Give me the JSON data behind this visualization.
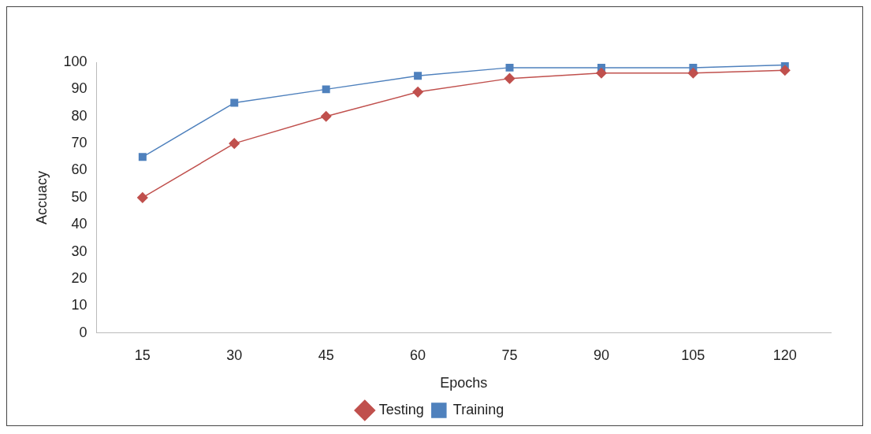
{
  "chart_data": {
    "type": "line",
    "xlabel": "Epochs",
    "ylabel": "Accuacy",
    "categories": [
      "15",
      "30",
      "45",
      "60",
      "75",
      "90",
      "105",
      "120"
    ],
    "series": [
      {
        "name": "Testing",
        "color": "#c0504d",
        "marker": "diamond",
        "values": [
          50,
          70,
          80,
          89,
          94,
          96,
          96,
          97
        ]
      },
      {
        "name": "Training",
        "color": "#4f81bd",
        "marker": "square",
        "values": [
          65,
          85,
          90,
          95,
          98,
          98,
          98,
          99
        ]
      }
    ],
    "ylim": [
      0,
      100
    ],
    "yticks": [
      0,
      10,
      20,
      30,
      40,
      50,
      60,
      70,
      80,
      90,
      100
    ],
    "grid": false,
    "legend": "bottom",
    "line_style": "solid"
  }
}
